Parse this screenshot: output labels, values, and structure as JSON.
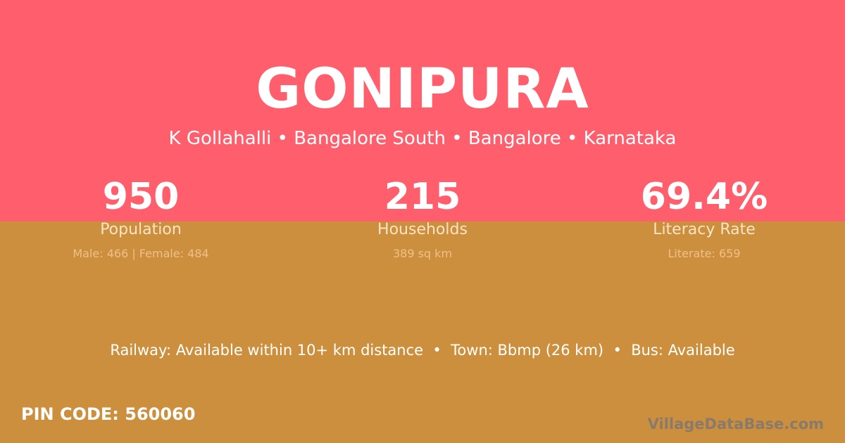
{
  "village": "GONIPURA",
  "location": "K Gollahalli • Bangalore South • Bangalore • Karnataka",
  "stats": [
    {
      "value": "950",
      "label": "Population",
      "detail": "Male: 466 | Female: 484"
    },
    {
      "value": "215",
      "label": "Households",
      "detail": "389 sq km"
    },
    {
      "value": "69.4%",
      "label": "Literacy Rate",
      "detail": "Literate: 659"
    }
  ],
  "info": "Railway: Available within 10+ km distance  •  Town: Bbmp (26 km)  •  Bus: Available",
  "pin": "PIN CODE: 560060",
  "watermark": "VillageDataBase.com",
  "colors": {
    "top": "#ff5f6d",
    "bottom": "#cc8f3d"
  }
}
